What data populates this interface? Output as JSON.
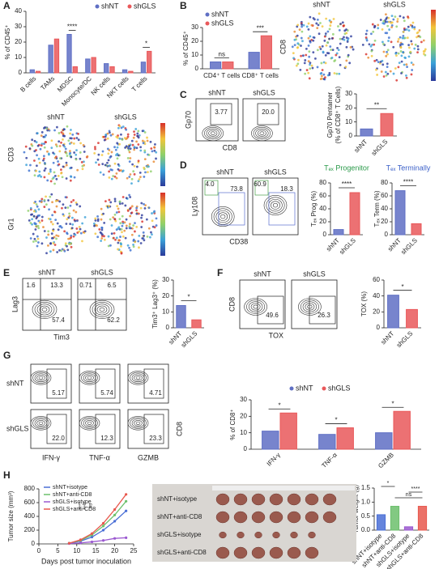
{
  "panel_letters": [
    "A",
    "B",
    "C",
    "D",
    "E",
    "F",
    "G",
    "H"
  ],
  "chart_data": [
    {
      "type": "bar",
      "y_label": "% of CD45⁺",
      "categories": [
        "B cells",
        "TAMs",
        "MDSC",
        "Monocyte/DC",
        "NK cells",
        "NKT cells",
        "T cells"
      ],
      "series": [
        {
          "name": "shNT",
          "color": "#5f6fc4",
          "values": [
            2,
            18,
            25,
            9,
            6,
            2,
            7
          ]
        },
        {
          "name": "shGLS",
          "color": "#e9585a",
          "values": [
            1,
            22,
            4,
            10,
            4,
            1,
            14
          ]
        }
      ],
      "ylim": [
        0,
        40
      ],
      "yticks": [
        0,
        10,
        20,
        30,
        40
      ],
      "annotations": [
        null,
        null,
        "****",
        null,
        null,
        null,
        "*"
      ]
    },
    {
      "type": "bar",
      "y_label": "% of CD45⁺",
      "categories": [
        "CD4⁺ T cells",
        "CD8⁺ T cells"
      ],
      "series": [
        {
          "name": "shNT",
          "color": "#5f6fc4",
          "values": [
            5,
            12
          ]
        },
        {
          "name": "shGLS",
          "color": "#e9585a",
          "values": [
            5,
            24
          ]
        }
      ],
      "ylim": [
        0,
        30
      ],
      "yticks": [
        0,
        10,
        20,
        30
      ],
      "annotations": [
        "ns",
        "***"
      ]
    },
    {
      "type": "bar",
      "y_label": [
        "Gp70 Pentamer",
        "(% of CD8⁺ T Cells)"
      ],
      "categories": [
        "shNT",
        "shGLS"
      ],
      "values": [
        5,
        16
      ],
      "colors": [
        "#5f6fc4",
        "#e9585a"
      ],
      "ylim": [
        0,
        30
      ],
      "yticks": [
        0,
        10,
        20,
        30
      ],
      "annotation": "**"
    },
    {
      "type": "bar",
      "title": "Tₑₓ Progenitor",
      "title_color": "#2a9a4a",
      "y_label": "Tₑₓ Prog (%)",
      "categories": [
        "shNT",
        "shGLS"
      ],
      "values": [
        8,
        65
      ],
      "colors": [
        "#5f6fc4",
        "#e9585a"
      ],
      "ylim": [
        0,
        80
      ],
      "yticks": [
        0,
        20,
        40,
        60,
        80
      ],
      "annotation": "****"
    },
    {
      "type": "bar",
      "title": "Tₑₓ Terminally",
      "title_color": "#3a5fc8",
      "y_label": "Tₑₓ Term (%)",
      "categories": [
        "shNT",
        "shGLS"
      ],
      "values": [
        68,
        17
      ],
      "colors": [
        "#5f6fc4",
        "#e9585a"
      ],
      "ylim": [
        0,
        80
      ],
      "yticks": [
        0,
        20,
        40,
        60,
        80
      ],
      "annotation": "****"
    },
    {
      "type": "bar",
      "y_label": "Tim3⁺ Lag3⁺ (%)",
      "categories": [
        "shNT",
        "shGLS"
      ],
      "values": [
        14,
        5
      ],
      "colors": [
        "#5f6fc4",
        "#e9585a"
      ],
      "ylim": [
        0,
        30
      ],
      "yticks": [
        0,
        10,
        20,
        30
      ],
      "annotation": "*"
    },
    {
      "type": "bar",
      "y_label": "TOX (%)",
      "categories": [
        "shNT",
        "shGLS"
      ],
      "values": [
        41,
        23
      ],
      "colors": [
        "#5f6fc4",
        "#e9585a"
      ],
      "ylim": [
        0,
        60
      ],
      "yticks": [
        0,
        20,
        40,
        60
      ],
      "annotation": "*"
    },
    {
      "type": "bar",
      "y_label": "% of CD8⁺",
      "categories": [
        "IFN-γ",
        "TNF-α",
        "GZMB"
      ],
      "series": [
        {
          "name": "shNT",
          "color": "#5f6fc4",
          "values": [
            11,
            9,
            10
          ]
        },
        {
          "name": "shGLS",
          "color": "#e9585a",
          "values": [
            22,
            13,
            23
          ]
        }
      ],
      "ylim": [
        0,
        30
      ],
      "yticks": [
        0,
        10,
        20,
        30
      ],
      "annotations": [
        "*",
        "*",
        "*"
      ]
    },
    {
      "type": "line",
      "y_label": "Tumor size (mm³)",
      "x_label": "Days post tumor inoculation",
      "x": [
        8,
        11,
        14,
        17,
        20,
        23
      ],
      "series": [
        {
          "name": "shNT+isotype",
          "color": "#4a6fd6",
          "values": [
            10,
            40,
            100,
            200,
            330,
            480
          ]
        },
        {
          "name": "shNT+anti-CD8",
          "color": "#6cc06c",
          "values": [
            10,
            50,
            130,
            260,
            420,
            620
          ]
        },
        {
          "name": "shGLS+isotype",
          "color": "#9b59d0",
          "values": [
            5,
            15,
            30,
            50,
            80,
            90
          ]
        },
        {
          "name": "shGLS+anti-CD8",
          "color": "#e8584e",
          "values": [
            10,
            60,
            150,
            300,
            500,
            720
          ]
        }
      ],
      "xlim": [
        0,
        25
      ],
      "xticks": [
        0,
        5,
        10,
        15,
        20,
        25
      ],
      "ylim": [
        0,
        800
      ],
      "yticks": [
        0,
        200,
        400,
        600,
        800
      ],
      "annotations": [
        "****",
        "****",
        "ns"
      ]
    },
    {
      "type": "bar",
      "y_label": "Tumor weight (g)",
      "categories": [
        "shNT+isotype",
        "shNT+anti-CD8",
        "shGLS+isotype",
        "shGLS+anti-CD8"
      ],
      "values": [
        0.55,
        0.85,
        0.12,
        0.85
      ],
      "colors": [
        "#4a6fd6",
        "#6cc06c",
        "#9b59d0",
        "#e8584e"
      ],
      "ylim": [
        0,
        1.5
      ],
      "yticks": [
        {
          "value": 0,
          "label": "0.0"
        },
        {
          "value": 0.5,
          "label": "0.5"
        },
        {
          "value": 1,
          "label": "1.0"
        },
        {
          "value": 1.5,
          "label": "1.5"
        }
      ],
      "annotations": [
        "*",
        "ns",
        "****"
      ]
    }
  ],
  "tsne": {
    "top_labels": [
      "shNT",
      "shGLS"
    ],
    "top_marker": "CD8",
    "bottom_labels": [
      "shNT",
      "shGLS"
    ],
    "bottom_markers": [
      "CD3",
      "Gr1"
    ]
  },
  "flow": [
    {
      "y_label": "Gp70",
      "x_label": "CD8",
      "plots": [
        {
          "title": "shNT",
          "gates": [
            "3.77"
          ]
        },
        {
          "title": "shGLS",
          "gates": [
            "20.0"
          ]
        }
      ]
    },
    {
      "y_label": "Ly108",
      "x_label": "CD38",
      "plots": [
        {
          "title": "shNT",
          "gates": [
            "4.0",
            "73.8"
          ]
        },
        {
          "title": "shGLS",
          "gates": [
            "60.9",
            "18.3"
          ]
        }
      ]
    },
    {
      "y_label": "Lag3",
      "x_label": "Tim3",
      "plots": [
        {
          "title": "shNT",
          "gates": [
            "1.6",
            "13.3",
            "57.4"
          ]
        },
        {
          "title": "shGLS",
          "gates": [
            "0.71",
            "6.5",
            "62.2"
          ]
        }
      ]
    },
    {
      "y_label": "CD8",
      "x_label": "TOX",
      "plots": [
        {
          "title": "shNT",
          "gates": [
            "49.6"
          ]
        },
        {
          "title": "shGLS",
          "gates": [
            "26.3"
          ]
        }
      ]
    }
  ],
  "flow_grid": {
    "rows": [
      "shNT",
      "shGLS"
    ],
    "columns": [
      "IFN-γ",
      "TNF-α",
      "GZMB"
    ],
    "gates": [
      [
        "5.17",
        "5.74",
        "4.71"
      ],
      [
        "22.0",
        "12.3",
        "23.3"
      ]
    ],
    "y_label": "CD8"
  },
  "photo": {
    "rows": [
      "shNT+isotype",
      "shNT+anti-CD8",
      "shGLS+isotype",
      "shGLS+anti-CD8"
    ]
  }
}
